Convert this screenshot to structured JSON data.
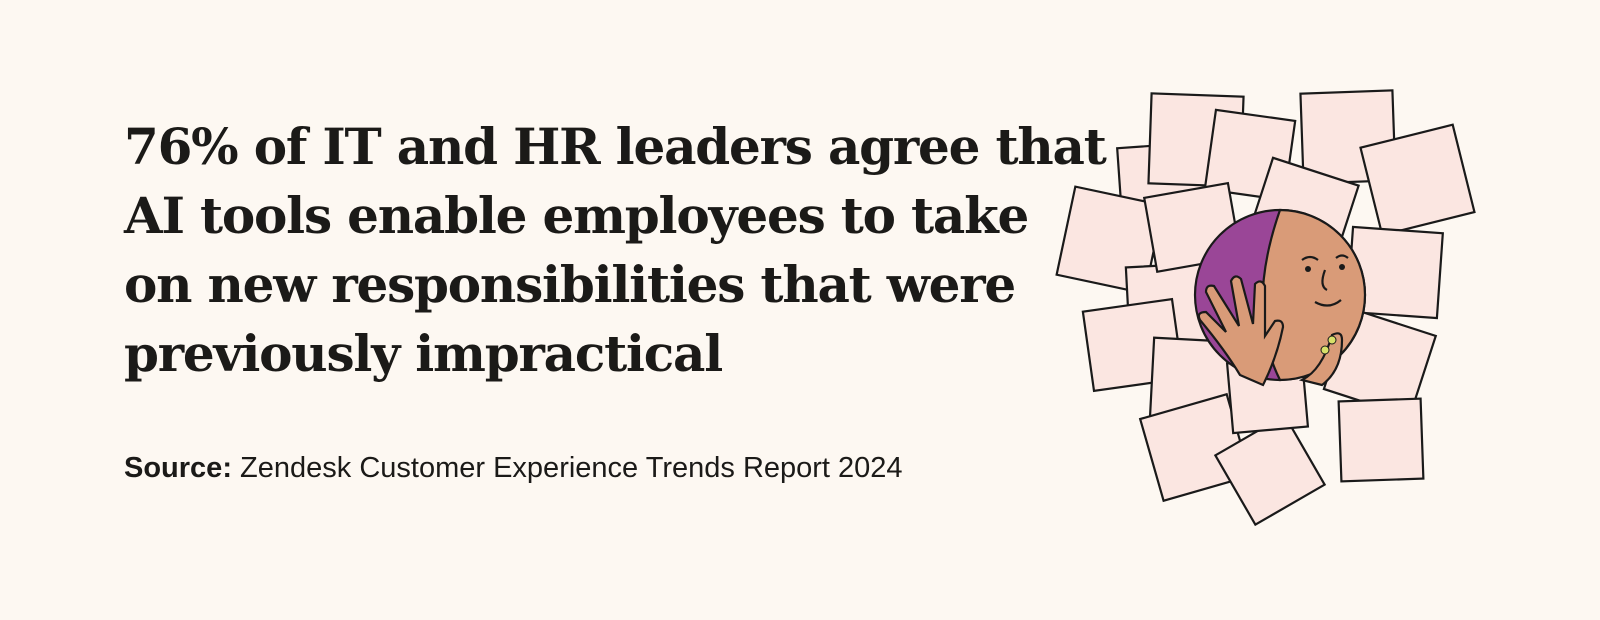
{
  "headline": {
    "lines": [
      "76% of IT and HR leaders agree that",
      "AI tools enable employees to take",
      "on new responsibilities that were",
      "previously impractical"
    ]
  },
  "source": {
    "label": "Source:",
    "text": "Zendesk Customer Experience Trends Report 2024"
  }
}
